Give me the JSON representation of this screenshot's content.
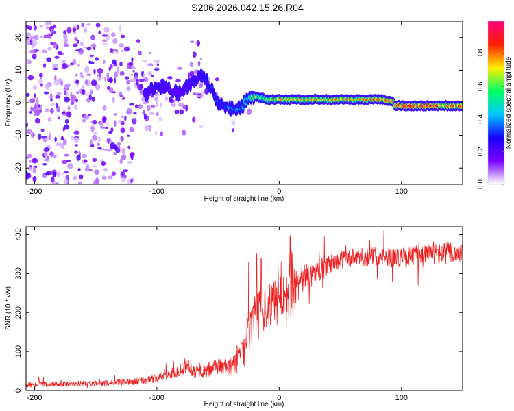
{
  "figure_title": "S206.2026.042.15.26.R04",
  "chart_data": [
    {
      "type": "heatmap",
      "title": "S206.2026.042.15.26.R04",
      "xlabel": "Height of straight line (km)",
      "ylabel": "Frequency (Hz)",
      "xlim": [
        -207,
        150
      ],
      "ylim": [
        -25,
        25
      ],
      "xticks": [
        -200,
        -100,
        0,
        100
      ],
      "xtick_labels": [
        "-200",
        "-100",
        "0",
        "100"
      ],
      "yticks": [
        -20,
        -10,
        0,
        10,
        20
      ],
      "ytick_labels": [
        "-20",
        "-10",
        "0",
        "10",
        "20"
      ],
      "colorbar": {
        "label": "Normalized spectral amplitude",
        "range": [
          0,
          1
        ],
        "ticks": [
          0,
          0.2,
          0.4,
          0.6,
          0.8
        ],
        "tick_labels": [
          "0.0",
          "0.2",
          "0.4",
          "0.6",
          "0.8"
        ],
        "colors": [
          "#ffffff",
          "#7a00ff",
          "#1b00ff",
          "#00c8ff",
          "#00ff60",
          "#ffee00",
          "#ff2000",
          "#ff0080"
        ]
      },
      "ridge": {
        "x": [
          -110,
          -100,
          -90,
          -80,
          -70,
          -62,
          -56,
          -50,
          -44,
          -38,
          -30,
          -24,
          -22,
          -20,
          -10,
          0,
          20,
          40,
          60,
          80,
          92,
          95,
          110,
          130,
          150
        ],
        "freq_hz": [
          3,
          5,
          4,
          3,
          7,
          9,
          4,
          0,
          -1,
          -2,
          -1,
          2,
          2,
          2,
          1,
          1,
          1,
          1,
          1,
          1,
          0.5,
          -1,
          -1,
          -1,
          -1
        ],
        "amplitude": [
          0.2,
          0.25,
          0.2,
          0.2,
          0.25,
          0.3,
          0.3,
          0.3,
          0.35,
          0.35,
          0.4,
          0.5,
          0.6,
          0.6,
          0.65,
          0.7,
          0.7,
          0.72,
          0.72,
          0.72,
          0.8,
          0.85,
          0.85,
          0.8,
          0.8
        ]
      }
    },
    {
      "type": "line",
      "xlabel": "Height of straight line (km)",
      "ylabel": "SNR (10 * v/v)",
      "xlim": [
        -207,
        150
      ],
      "ylim": [
        0,
        420
      ],
      "xticks": [
        -200,
        -100,
        0,
        100
      ],
      "xtick_labels": [
        "-200",
        "-100",
        "0",
        "100"
      ],
      "yticks": [
        0,
        100,
        200,
        300,
        400
      ],
      "ytick_labels": [
        "0",
        "100",
        "200",
        "300",
        "400"
      ],
      "series": [
        {
          "name": "SNR",
          "color": "#ee2222",
          "x": [
            -207,
            -180,
            -150,
            -120,
            -100,
            -90,
            -80,
            -75,
            -70,
            -60,
            -50,
            -40,
            -35,
            -30,
            -25,
            -20,
            -15,
            -10,
            -5,
            0,
            5,
            10,
            15,
            20,
            30,
            40,
            50,
            60,
            80,
            100,
            120,
            150
          ],
          "mean": [
            15,
            16,
            18,
            22,
            30,
            40,
            55,
            70,
            50,
            50,
            65,
            55,
            80,
            90,
            150,
            180,
            200,
            210,
            225,
            240,
            260,
            250,
            270,
            285,
            305,
            320,
            335,
            340,
            345,
            340,
            350,
            355
          ],
          "spread": [
            12,
            12,
            12,
            14,
            18,
            22,
            30,
            35,
            28,
            30,
            40,
            40,
            60,
            70,
            90,
            110,
            100,
            100,
            90,
            90,
            100,
            120,
            80,
            60,
            50,
            45,
            40,
            40,
            40,
            45,
            45,
            50
          ]
        }
      ]
    }
  ]
}
